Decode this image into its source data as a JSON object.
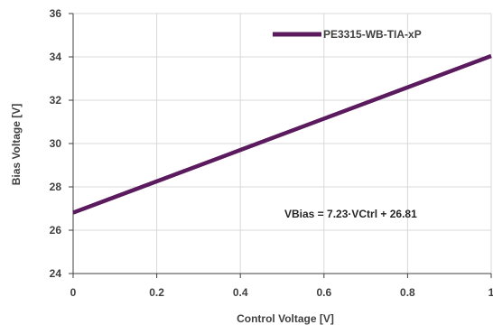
{
  "chart_data": {
    "type": "line",
    "x": [
      0,
      0.2,
      0.4,
      0.6,
      0.8,
      1
    ],
    "series": [
      {
        "name": "PE3315-WB-TIA-xP",
        "values": [
          26.81,
          28.256,
          29.702,
          31.148,
          32.594,
          34.04
        ],
        "color": "#5b1a5e"
      }
    ],
    "xlabel": "Control Voltage [V]",
    "ylabel": "Bias Voltage [V]",
    "xlim": [
      0,
      1
    ],
    "ylim": [
      24,
      36
    ],
    "xticks": [
      "0",
      "0.2",
      "0.4",
      "0.6",
      "0.8",
      "1"
    ],
    "yticks": [
      "24",
      "26",
      "28",
      "30",
      "32",
      "34",
      "36"
    ],
    "grid": true,
    "legend_position": "top-right",
    "annotation": "VBias = 7.23·VCtrl + 26.81",
    "colors": {
      "grid": "#d9d9d9",
      "axis": "#404040",
      "text": "#404040"
    }
  }
}
